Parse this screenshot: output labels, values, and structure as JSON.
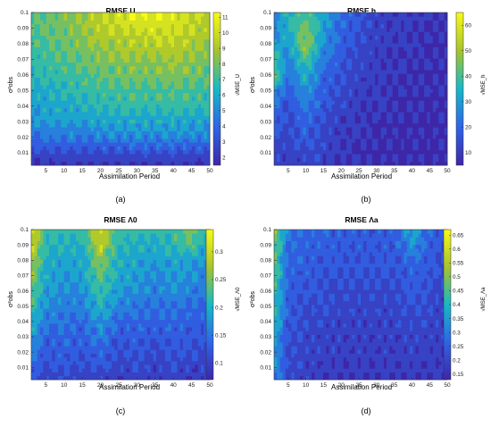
{
  "figure": {
    "subcaptions": [
      "(a)",
      "(b)",
      "(c)",
      "(d)"
    ]
  },
  "colors": {
    "low": "#3e26a8",
    "mid_low": "#2f64e7",
    "mid": "#16b9c6",
    "mid_high": "#a7c32e",
    "high": "#f9fb15",
    "contour_line": "#111111",
    "tick_text": "#222222"
  },
  "chart_data": [
    {
      "type": "heatmap",
      "title": "RMSE U",
      "xlabel": "Assimilation Period",
      "ylabel": "σ²obs",
      "colorbar_label": "√MSE_U",
      "xlim": [
        1,
        50
      ],
      "ylim": [
        0.002,
        0.1
      ],
      "xticks": [
        "5",
        "10",
        "15",
        "20",
        "25",
        "30",
        "35",
        "40",
        "45",
        "50"
      ],
      "yticks": [
        "0.01",
        "0.02",
        "0.03",
        "0.04",
        "0.05",
        "0.06",
        "0.07",
        "0.08",
        "0.09",
        "0.1"
      ],
      "colorbar_range": [
        1.5,
        11.3
      ],
      "colorbar_ticks": [
        "2",
        "3",
        "4",
        "5",
        "6",
        "7",
        "8",
        "9",
        "10",
        "11"
      ],
      "x": [
        1,
        5,
        10,
        15,
        20,
        25,
        30,
        35,
        40,
        45,
        50
      ],
      "y": [
        0.002,
        0.01,
        0.02,
        0.03,
        0.04,
        0.05,
        0.06,
        0.07,
        0.08,
        0.09,
        0.1
      ],
      "z": [
        [
          1.8,
          1.9,
          2.0,
          2.1,
          2.0,
          2.1,
          2.0,
          2.2,
          2.1,
          2.0,
          1.9
        ],
        [
          2.8,
          3.0,
          3.1,
          3.0,
          3.2,
          3.1,
          3.3,
          3.2,
          3.3,
          3.1,
          3.2
        ],
        [
          4.0,
          4.5,
          4.6,
          4.4,
          4.7,
          4.8,
          4.9,
          4.8,
          5.0,
          4.8,
          4.7
        ],
        [
          5.2,
          5.5,
          5.6,
          5.7,
          5.8,
          5.9,
          6.0,
          5.9,
          6.0,
          5.8,
          5.9
        ],
        [
          5.6,
          5.8,
          6.0,
          6.2,
          6.5,
          6.8,
          6.9,
          6.7,
          7.0,
          6.8,
          6.6
        ],
        [
          6.0,
          6.2,
          6.5,
          6.8,
          7.0,
          7.2,
          7.4,
          7.3,
          7.5,
          7.2,
          7.0
        ],
        [
          6.4,
          6.6,
          7.0,
          7.2,
          7.6,
          7.8,
          8.0,
          7.9,
          8.2,
          7.9,
          7.6
        ],
        [
          6.8,
          7.0,
          7.4,
          7.8,
          8.2,
          8.4,
          8.6,
          8.5,
          8.8,
          8.4,
          8.0
        ],
        [
          7.0,
          7.4,
          7.8,
          8.2,
          8.8,
          9.0,
          9.2,
          9.4,
          9.5,
          9.0,
          8.6
        ],
        [
          7.2,
          7.6,
          8.0,
          8.6,
          9.4,
          9.6,
          10.0,
          10.2,
          10.0,
          9.6,
          9.0
        ],
        [
          7.4,
          7.8,
          8.2,
          8.8,
          9.6,
          10.2,
          10.6,
          10.8,
          10.4,
          10.0,
          9.4
        ]
      ]
    },
    {
      "type": "heatmap",
      "title": "RMSE h",
      "xlabel": "Assimilation Period",
      "ylabel": "σ²obs",
      "colorbar_label": "√MSE_h",
      "xlim": [
        1,
        50
      ],
      "ylim": [
        0.002,
        0.1
      ],
      "xticks": [
        "5",
        "10",
        "15",
        "20",
        "25",
        "30",
        "35",
        "40",
        "45",
        "50"
      ],
      "yticks": [
        "0.01",
        "0.02",
        "0.03",
        "0.04",
        "0.05",
        "0.06",
        "0.07",
        "0.08",
        "0.09",
        "0.1"
      ],
      "colorbar_range": [
        5,
        65
      ],
      "colorbar_ticks": [
        "10",
        "20",
        "30",
        "40",
        "50",
        "60"
      ],
      "x": [
        1,
        5,
        10,
        15,
        20,
        25,
        30,
        35,
        40,
        45,
        50
      ],
      "y": [
        0.002,
        0.01,
        0.02,
        0.03,
        0.04,
        0.05,
        0.06,
        0.07,
        0.08,
        0.09,
        0.1
      ],
      "z": [
        [
          12,
          10,
          12,
          10,
          9,
          8,
          8,
          7,
          7,
          7,
          7
        ],
        [
          14,
          11,
          15,
          12,
          9,
          8,
          8,
          7,
          7,
          7,
          7
        ],
        [
          16,
          12,
          18,
          13,
          10,
          8,
          8,
          7,
          7,
          7,
          7
        ],
        [
          18,
          13,
          20,
          14,
          11,
          9,
          8,
          8,
          7,
          7,
          7
        ],
        [
          22,
          15,
          24,
          16,
          12,
          10,
          9,
          8,
          8,
          7,
          7
        ],
        [
          30,
          18,
          28,
          18,
          14,
          11,
          9,
          8,
          8,
          8,
          7
        ],
        [
          45,
          22,
          34,
          20,
          15,
          12,
          10,
          9,
          8,
          8,
          8
        ],
        [
          38,
          26,
          40,
          24,
          17,
          13,
          10,
          9,
          8,
          8,
          8
        ],
        [
          30,
          30,
          50,
          28,
          18,
          14,
          11,
          9,
          9,
          8,
          8
        ],
        [
          26,
          34,
          44,
          30,
          20,
          15,
          11,
          10,
          9,
          8,
          8
        ],
        [
          24,
          36,
          40,
          32,
          22,
          16,
          12,
          10,
          9,
          9,
          8
        ]
      ]
    },
    {
      "type": "heatmap",
      "title": "RMSE Λ0",
      "xlabel": "Assimilation Period",
      "ylabel": "σ²obs",
      "colorbar_label": "√MSE_Λ0",
      "xlim": [
        1,
        50
      ],
      "ylim": [
        0.002,
        0.1
      ],
      "xticks": [
        "5",
        "10",
        "15",
        "20",
        "25",
        "30",
        "35",
        "40",
        "45",
        "50"
      ],
      "yticks": [
        "0.01",
        "0.02",
        "0.03",
        "0.04",
        "0.05",
        "0.06",
        "0.07",
        "0.08",
        "0.09",
        "0.1"
      ],
      "colorbar_range": [
        0.07,
        0.34
      ],
      "colorbar_ticks": [
        "0.1",
        "0.15",
        "0.2",
        "0.25",
        "0.3"
      ],
      "x": [
        1,
        5,
        10,
        15,
        20,
        25,
        30,
        35,
        40,
        45,
        50
      ],
      "y": [
        0.002,
        0.01,
        0.02,
        0.03,
        0.04,
        0.05,
        0.06,
        0.07,
        0.08,
        0.09,
        0.1
      ],
      "z": [
        [
          0.12,
          0.1,
          0.11,
          0.1,
          0.1,
          0.09,
          0.1,
          0.09,
          0.1,
          0.09,
          0.09
        ],
        [
          0.14,
          0.11,
          0.12,
          0.11,
          0.12,
          0.1,
          0.11,
          0.1,
          0.11,
          0.1,
          0.1
        ],
        [
          0.16,
          0.12,
          0.13,
          0.12,
          0.14,
          0.11,
          0.12,
          0.11,
          0.12,
          0.11,
          0.11
        ],
        [
          0.18,
          0.13,
          0.14,
          0.13,
          0.16,
          0.12,
          0.13,
          0.12,
          0.13,
          0.12,
          0.12
        ],
        [
          0.2,
          0.15,
          0.15,
          0.14,
          0.18,
          0.14,
          0.14,
          0.13,
          0.14,
          0.13,
          0.13
        ],
        [
          0.22,
          0.17,
          0.16,
          0.16,
          0.2,
          0.16,
          0.15,
          0.15,
          0.15,
          0.14,
          0.14
        ],
        [
          0.24,
          0.18,
          0.17,
          0.17,
          0.22,
          0.18,
          0.17,
          0.16,
          0.17,
          0.16,
          0.15
        ],
        [
          0.26,
          0.19,
          0.18,
          0.18,
          0.24,
          0.19,
          0.18,
          0.17,
          0.18,
          0.17,
          0.16
        ],
        [
          0.28,
          0.2,
          0.19,
          0.19,
          0.26,
          0.2,
          0.19,
          0.18,
          0.19,
          0.18,
          0.17
        ],
        [
          0.3,
          0.21,
          0.2,
          0.2,
          0.29,
          0.21,
          0.2,
          0.2,
          0.21,
          0.24,
          0.18
        ],
        [
          0.31,
          0.22,
          0.21,
          0.22,
          0.31,
          0.22,
          0.21,
          0.21,
          0.22,
          0.26,
          0.19
        ]
      ]
    },
    {
      "type": "heatmap",
      "title": "RMSE Λa",
      "xlabel": "Assimilation Period",
      "ylabel": "σ²obs",
      "colorbar_label": "√MSE_Λa",
      "xlim": [
        1,
        50
      ],
      "ylim": [
        0.002,
        0.1
      ],
      "xticks": [
        "5",
        "10",
        "15",
        "20",
        "25",
        "30",
        "35",
        "40",
        "45",
        "50"
      ],
      "yticks": [
        "0.01",
        "0.02",
        "0.03",
        "0.04",
        "0.05",
        "0.06",
        "0.07",
        "0.08",
        "0.09",
        "0.1"
      ],
      "colorbar_range": [
        0.13,
        0.67
      ],
      "colorbar_ticks": [
        "0.15",
        "0.2",
        "0.25",
        "0.3",
        "0.35",
        "0.4",
        "0.45",
        "0.5",
        "0.55",
        "0.6",
        "0.65"
      ],
      "x": [
        1,
        5,
        10,
        15,
        20,
        25,
        30,
        35,
        40,
        45,
        50
      ],
      "y": [
        0.002,
        0.01,
        0.02,
        0.03,
        0.04,
        0.05,
        0.06,
        0.07,
        0.08,
        0.09,
        0.1
      ],
      "z": [
        [
          0.3,
          0.2,
          0.18,
          0.17,
          0.16,
          0.16,
          0.16,
          0.16,
          0.17,
          0.16,
          0.16
        ],
        [
          0.34,
          0.21,
          0.19,
          0.18,
          0.17,
          0.17,
          0.17,
          0.17,
          0.18,
          0.17,
          0.17
        ],
        [
          0.36,
          0.22,
          0.2,
          0.19,
          0.18,
          0.18,
          0.18,
          0.18,
          0.19,
          0.18,
          0.17
        ],
        [
          0.38,
          0.22,
          0.2,
          0.19,
          0.19,
          0.18,
          0.19,
          0.18,
          0.2,
          0.19,
          0.18
        ],
        [
          0.4,
          0.23,
          0.21,
          0.2,
          0.19,
          0.19,
          0.19,
          0.19,
          0.21,
          0.2,
          0.18
        ],
        [
          0.42,
          0.24,
          0.22,
          0.21,
          0.2,
          0.2,
          0.2,
          0.2,
          0.22,
          0.21,
          0.19
        ],
        [
          0.44,
          0.25,
          0.23,
          0.22,
          0.21,
          0.21,
          0.21,
          0.21,
          0.23,
          0.22,
          0.19
        ],
        [
          0.46,
          0.26,
          0.24,
          0.23,
          0.22,
          0.22,
          0.22,
          0.22,
          0.25,
          0.23,
          0.2
        ],
        [
          0.48,
          0.27,
          0.25,
          0.24,
          0.23,
          0.23,
          0.23,
          0.23,
          0.28,
          0.24,
          0.2
        ],
        [
          0.5,
          0.28,
          0.26,
          0.25,
          0.24,
          0.24,
          0.24,
          0.24,
          0.34,
          0.25,
          0.21
        ],
        [
          0.52,
          0.29,
          0.27,
          0.26,
          0.25,
          0.25,
          0.25,
          0.25,
          0.38,
          0.26,
          0.22
        ]
      ]
    }
  ]
}
